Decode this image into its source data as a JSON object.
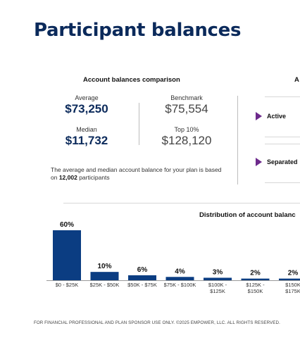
{
  "page": {
    "title": "Participant balances"
  },
  "comparison": {
    "title": "Account balances comparison",
    "average_label": "Average",
    "average_value": "$73,250",
    "median_label": "Median",
    "median_value": "$11,732",
    "benchmark_label": "Benchmark",
    "benchmark_value": "$75,554",
    "top10_label": "Top 10%",
    "top10_value": "$128,120",
    "note_prefix": "The average and median account balance for your plan is based on ",
    "note_count": "12,002",
    "note_suffix": " participants"
  },
  "right_panel": {
    "title_fragment": "A",
    "statuses": [
      "Active",
      "Separated"
    ],
    "colors": {
      "chevron": "#6d2a8c"
    }
  },
  "distribution": {
    "title": "Distribution of account balanc"
  },
  "chart_data": {
    "type": "bar",
    "title": "Distribution of account balanc",
    "categories": [
      "$0 - $25K",
      "$25K - $50K",
      "$50K - $75K",
      "$75K - $100K",
      "$100K - $125K",
      "$125K - $150K",
      "$150K - $175K"
    ],
    "category_lines": [
      [
        "$0 - $25K"
      ],
      [
        "$25K - $50K"
      ],
      [
        "$50K - $75K"
      ],
      [
        "$75K - $100K"
      ],
      [
        "$100K -",
        "$125K"
      ],
      [
        "$125K -",
        "$150K"
      ],
      [
        "$150K",
        "$175K"
      ]
    ],
    "values": [
      60,
      10,
      6,
      4,
      3,
      2,
      2
    ],
    "labels": [
      "60%",
      "10%",
      "6%",
      "4%",
      "3%",
      "2%",
      "2%"
    ],
    "unit": "%",
    "ylim": [
      0,
      60
    ],
    "color": "#0b3d82",
    "grid": false
  },
  "footer": "FOR FINANCIAL PROFESSIONAL AND PLAN SPONSOR USE ONLY. ©2025 EMPOWER, LLC. ALL RIGHTS RESERVED."
}
